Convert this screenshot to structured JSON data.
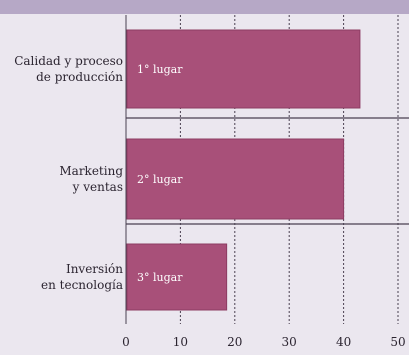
{
  "chart_data": {
    "type": "bar",
    "orientation": "horizontal",
    "categories": [
      [
        "Calidad y proceso",
        "de producción"
      ],
      [
        "Marketing",
        "y ventas"
      ],
      [
        "Inversión",
        "en tecnología"
      ]
    ],
    "values": [
      43,
      40,
      18.5
    ],
    "bar_labels": [
      "1° lugar",
      "2° lugar",
      "3° lugar"
    ],
    "xticks": [
      0,
      10,
      20,
      30,
      40,
      50
    ],
    "xlim": [
      0,
      50
    ],
    "grid": true,
    "colors": {
      "bar": "#a85079",
      "bar_border": "#8c3c62",
      "grid": "#4a4050",
      "background": "#ebe7ef",
      "top_band": "#b6a8c6"
    }
  }
}
